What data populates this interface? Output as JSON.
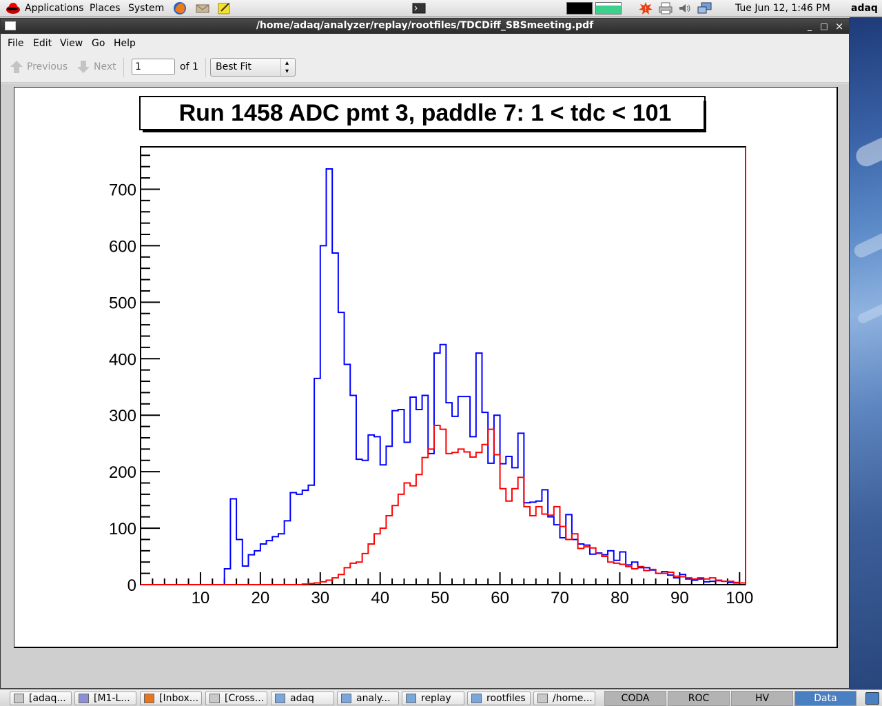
{
  "top_panel": {
    "menus": [
      "Applications",
      "Places",
      "System"
    ],
    "clock": "Tue Jun 12,  1:46 PM",
    "user": "adaq"
  },
  "window": {
    "title": "/home/adaq/analyzer/replay/rootfiles/TDCDiff_SBSmeeting.pdf",
    "buttons": [
      "_",
      "□",
      "×"
    ]
  },
  "menubar": [
    "File",
    "Edit",
    "View",
    "Go",
    "Help"
  ],
  "toolbar": {
    "previous_label": "Previous",
    "next_label": "Next",
    "page_value": "1",
    "page_count_label": "of 1",
    "zoom_value": "Best Fit"
  },
  "chart_data": {
    "type": "line",
    "title": "Run 1458 ADC pmt 3, paddle 7: 1 < tdc < 101",
    "xlabel": "",
    "ylabel": "",
    "xlim": [
      0,
      101
    ],
    "ylim": [
      0,
      775
    ],
    "x_ticks": [
      "10",
      "20",
      "30",
      "40",
      "50",
      "60",
      "70",
      "80",
      "90",
      "100"
    ],
    "y_ticks": [
      "0",
      "100",
      "200",
      "300",
      "400",
      "500",
      "600",
      "700"
    ],
    "grid": false,
    "step": true,
    "bin_width": 1,
    "x_start": 0,
    "series": [
      {
        "color": "#0000ff",
        "values": [
          0,
          0,
          0,
          0,
          0,
          0,
          0,
          0,
          0,
          0,
          0,
          0,
          0,
          0,
          28,
          152,
          80,
          33,
          53,
          60,
          72,
          78,
          85,
          90,
          113,
          163,
          160,
          167,
          176,
          365,
          600,
          736,
          587,
          482,
          390,
          335,
          222,
          220,
          265,
          262,
          212,
          245,
          308,
          310,
          252,
          332,
          310,
          335,
          232,
          410,
          425,
          322,
          298,
          333,
          333,
          262,
          410,
          305,
          215,
          300,
          214,
          227,
          207,
          268,
          145,
          146,
          148,
          168,
          120,
          106,
          83,
          124,
          80,
          72,
          70,
          54,
          56,
          53,
          60,
          43,
          58,
          35,
          40,
          30,
          30,
          26,
          20,
          23,
          17,
          12,
          18,
          10,
          8,
          10,
          5,
          6,
          7,
          6,
          4,
          3,
          3
        ],
        "color_name": "blue"
      },
      {
        "color": "#ff0000",
        "values": [
          0,
          0,
          0,
          0,
          0,
          0,
          0,
          0,
          0,
          0,
          0,
          0,
          0,
          0,
          0,
          0,
          0,
          0,
          0,
          0,
          0,
          0,
          0,
          0,
          0,
          0,
          0,
          1,
          2,
          3,
          5,
          8,
          12,
          18,
          30,
          38,
          40,
          55,
          72,
          90,
          100,
          122,
          140,
          160,
          180,
          175,
          195,
          225,
          240,
          282,
          275,
          232,
          234,
          240,
          235,
          226,
          234,
          248,
          275,
          230,
          170,
          148,
          170,
          190,
          138,
          122,
          138,
          125,
          123,
          138,
          103,
          80,
          90,
          64,
          67,
          65,
          55,
          50,
          40,
          38,
          36,
          32,
          28,
          32,
          25,
          27,
          20,
          20,
          22,
          15,
          14,
          12,
          10,
          12,
          10,
          12,
          8,
          6,
          6,
          4,
          3
        ],
        "color_name": "red"
      }
    ]
  },
  "taskbar": {
    "items": [
      "[adaq...",
      "[M1-L...",
      "[Inbox...",
      "[Cross...",
      "adaq",
      "analy...",
      "replay",
      "rootfiles",
      "/home..."
    ],
    "workspaces": [
      "CODA",
      "ROC",
      "HV",
      "Data analysis"
    ]
  }
}
